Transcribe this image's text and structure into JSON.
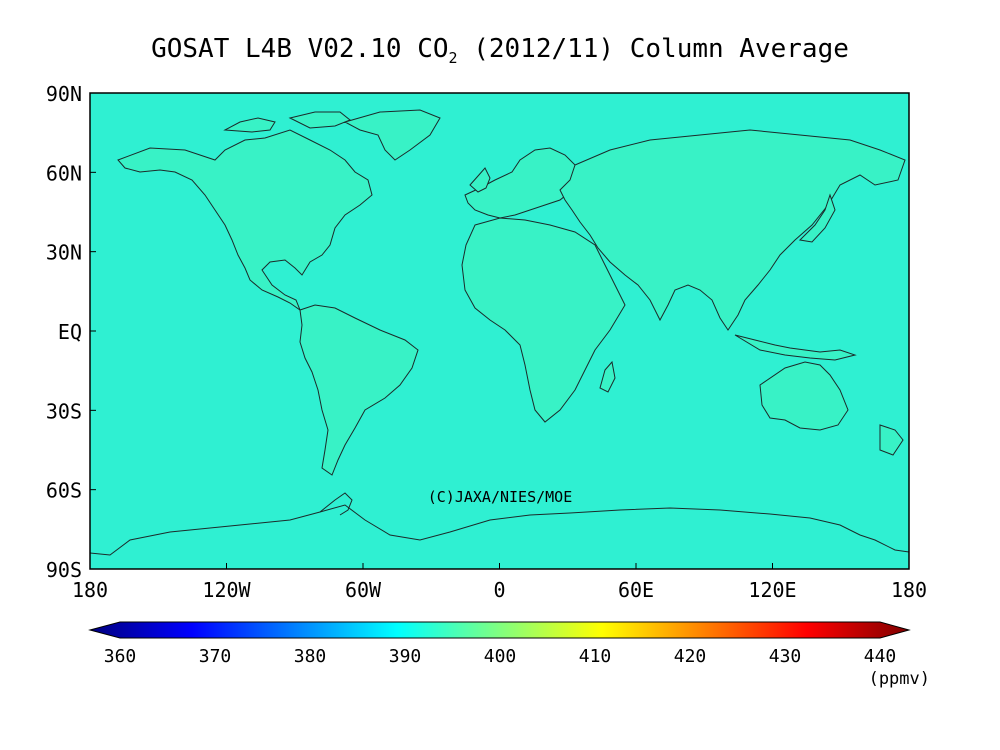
{
  "title": {
    "text": "GOSAT L4B V02.10 CO",
    "subscript": "2",
    "suffix": " (2012/11) Column Average"
  },
  "map": {
    "lat_ticks": [
      "90N",
      "60N",
      "30N",
      "EQ",
      "30S",
      "60S",
      "90S"
    ],
    "lon_ticks": [
      "180",
      "120W",
      "60W",
      "0",
      "60E",
      "120E",
      "180"
    ],
    "copyright": "(C)JAXA/NIES/MOE",
    "ocean_color": "#2ff0d2",
    "land_color": "#38f2c6",
    "coast_color": "#1b2a2a"
  },
  "colorbar": {
    "ticks": [
      "360",
      "370",
      "380",
      "390",
      "400",
      "410",
      "420",
      "430",
      "440"
    ],
    "unit": "(ppmv)",
    "range": [
      360,
      440
    ],
    "colors": [
      "#000080",
      "#0000ff",
      "#0080ff",
      "#00ffff",
      "#80ff80",
      "#ffff00",
      "#ff8000",
      "#ff0000",
      "#800000"
    ]
  }
}
